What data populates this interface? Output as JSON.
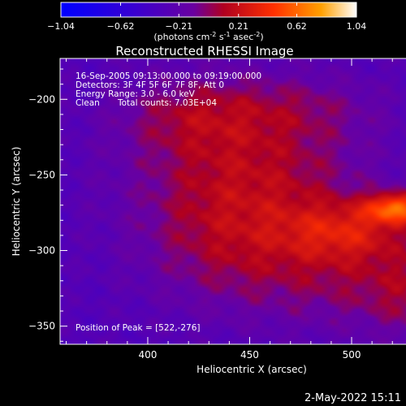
{
  "chart_data": {
    "type": "heatmap",
    "title": "Reconstructed RHESSI Image",
    "xlabel": "Heliocentric X (arcsec)",
    "ylabel": "Heliocentric Y (arcsec)",
    "xlim": [
      357,
      545
    ],
    "ylim": [
      -362,
      -173
    ],
    "x_ticks": [
      400,
      450,
      500
    ],
    "y_ticks": [
      -200,
      -250,
      -300,
      -350
    ],
    "colorbar": {
      "min": -1.04,
      "max": 1.04,
      "ticks": [
        "-1.04",
        "-0.62",
        "-0.21",
        "0.21",
        "0.62",
        "1.04"
      ],
      "tick_values": [
        -1.04,
        -0.62,
        -0.21,
        0.21,
        0.62,
        1.04
      ],
      "unit_prefix": "(photons cm",
      "unit_exp1": "-2",
      "unit_mid": " s",
      "unit_exp2": "-1",
      "unit_mid2": " asec",
      "unit_exp3": "-2",
      "unit_suffix": ")"
    },
    "annotations": {
      "time_range": "16-Sep-2005 09:13:00.000 to 09:19:00.000",
      "detectors": "Detectors: 3F 4F 5F 6F 7F 8F, Att 0",
      "energy": "Energy Range: 3.0 - 6.0 keV",
      "method": "Clean",
      "counts": "Total counts: 7.03E+04",
      "peak": "Position of Peak = [522,-276]"
    },
    "peak": {
      "x": 522,
      "y": -276
    },
    "sources": [
      {
        "x": 523,
        "y": -272,
        "amp": 0.75,
        "sx": 11,
        "sy": 7
      },
      {
        "x": 498,
        "y": -287,
        "amp": 0.38,
        "sx": 22,
        "sy": 14
      },
      {
        "x": 450,
        "y": -250,
        "amp": 0.4,
        "sx": 40,
        "sy": 38
      },
      {
        "x": 420,
        "y": -210,
        "amp": 0.22,
        "sx": 25,
        "sy": 18
      },
      {
        "x": 475,
        "y": -205,
        "amp": 0.15,
        "sx": 30,
        "sy": 15
      },
      {
        "x": 505,
        "y": -320,
        "amp": 0.25,
        "sx": 35,
        "sy": 25
      },
      {
        "x": 440,
        "y": -300,
        "amp": 0.22,
        "sx": 30,
        "sy": 30
      },
      {
        "x": 530,
        "y": -330,
        "amp": 0.18,
        "sx": 15,
        "sy": 20
      }
    ],
    "background": -0.3
  },
  "footer": {
    "date": "2-May-2022 15:11"
  }
}
